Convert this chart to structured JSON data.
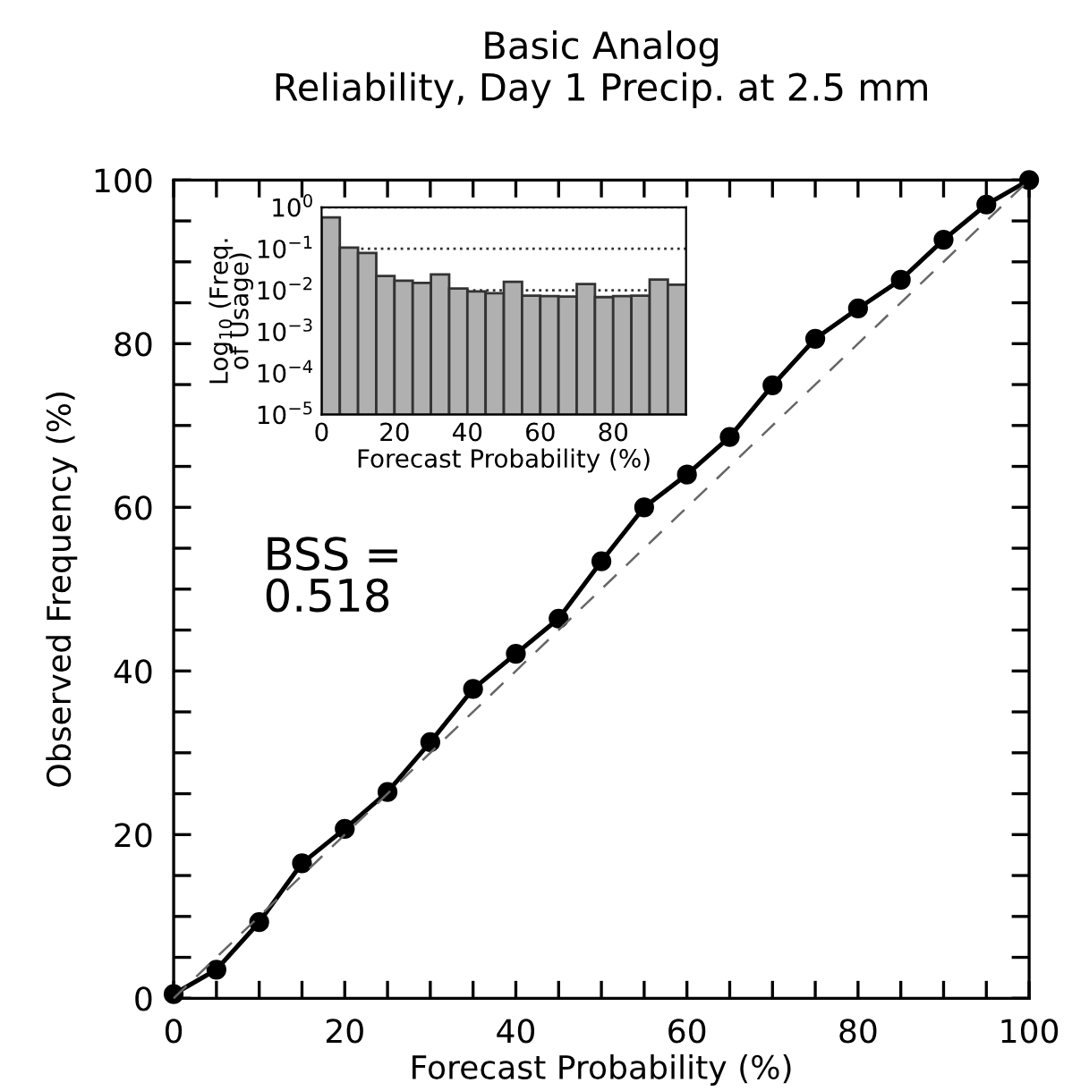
{
  "chart_data": [
    {
      "type": "line",
      "title": "Basic Analog\nReliability, Day 1 Precip. at 2.5 mm",
      "xlabel": "Forecast Probability (%)",
      "ylabel": "Observed Frequency (%)",
      "series": [
        {
          "type": "line",
          "color": "#000000",
          "marker": "circle",
          "line_style": "solid",
          "x": [
            0,
            5,
            10,
            15,
            20,
            25,
            30,
            35,
            40,
            45,
            50,
            55,
            60,
            65,
            70,
            75,
            80,
            85,
            90,
            95,
            100
          ],
          "values": [
            0.5,
            3.5,
            9.3,
            16.5,
            20.7,
            25.2,
            31.3,
            37.8,
            42.1,
            46.4,
            53.4,
            60.0,
            64.0,
            68.6,
            74.9,
            80.6,
            84.3,
            87.8,
            92.7,
            97.0,
            100
          ]
        },
        {
          "type": "line",
          "color": "#666666",
          "marker": "none",
          "line_style": "dashed",
          "x": [
            0,
            100
          ],
          "values": [
            0,
            100
          ]
        }
      ],
      "xlim": [
        0,
        100
      ],
      "ylim": [
        0,
        100
      ],
      "xticks": [
        0,
        {
          "value": 5,
          "label": null
        },
        {
          "value": 10,
          "label": null
        },
        {
          "value": 15,
          "label": null
        },
        20,
        {
          "value": 25,
          "label": null
        },
        {
          "value": 30,
          "label": null
        },
        {
          "value": 35,
          "label": null
        },
        40,
        {
          "value": 45,
          "label": null
        },
        {
          "value": 50,
          "label": null
        },
        {
          "value": 55,
          "label": null
        },
        60,
        {
          "value": 65,
          "label": null
        },
        {
          "value": 70,
          "label": null
        },
        {
          "value": 75,
          "label": null
        },
        80,
        {
          "value": 85,
          "label": null
        },
        {
          "value": 90,
          "label": null
        },
        {
          "value": 95,
          "label": null
        },
        100
      ],
      "yticks": [
        0,
        {
          "value": 5,
          "label": null
        },
        {
          "value": 10,
          "label": null
        },
        {
          "value": 15,
          "label": null
        },
        20,
        {
          "value": 25,
          "label": null
        },
        {
          "value": 30,
          "label": null
        },
        {
          "value": 35,
          "label": null
        },
        40,
        {
          "value": 45,
          "label": null
        },
        {
          "value": 50,
          "label": null
        },
        {
          "value": 55,
          "label": null
        },
        60,
        {
          "value": 65,
          "label": null
        },
        {
          "value": 70,
          "label": null
        },
        {
          "value": 75,
          "label": null
        },
        80,
        {
          "value": 85,
          "label": null
        },
        {
          "value": 90,
          "label": null
        },
        {
          "value": 95,
          "label": null
        },
        100
      ],
      "annotations": [
        "BSS =\n0.518"
      ],
      "grid": false
    },
    {
      "type": "histogram",
      "xlabel": "Forecast Probability (%)",
      "ylabel": "Log$_{10}$ (Freq.\nof Usage)",
      "log": "y",
      "color": "#b0b0b0",
      "bins": [
        0,
        5,
        10,
        15,
        20,
        25,
        30,
        35,
        40,
        45,
        50,
        55,
        60,
        65,
        70,
        75,
        80,
        85,
        90,
        95,
        100
      ],
      "values": [
        0.57,
        0.107,
        0.079,
        0.022,
        0.017,
        0.015,
        0.024,
        0.011,
        0.0093,
        0.0085,
        0.016,
        0.0074,
        0.0072,
        0.007,
        0.014,
        0.0068,
        0.0072,
        0.0074,
        0.018,
        0.0135
      ],
      "xlim": [
        0,
        100
      ],
      "ylim": [
        1e-05,
        1
      ],
      "xticks": [
        0,
        20,
        40,
        60,
        80
      ],
      "yticks": [
        {
          "value": 1e-05,
          "label": "10$^{−5}$"
        },
        {
          "value": 0.0001,
          "label": "10$^{−4}$"
        },
        {
          "value": 0.001,
          "label": "10$^{−3}$"
        },
        {
          "value": 0.01,
          "label": "10$^{−2}$"
        },
        {
          "value": 0.1,
          "label": "10$^{−1}$"
        },
        {
          "value": 1,
          "label": "10$^{0}$"
        }
      ],
      "grid": "y"
    }
  ]
}
